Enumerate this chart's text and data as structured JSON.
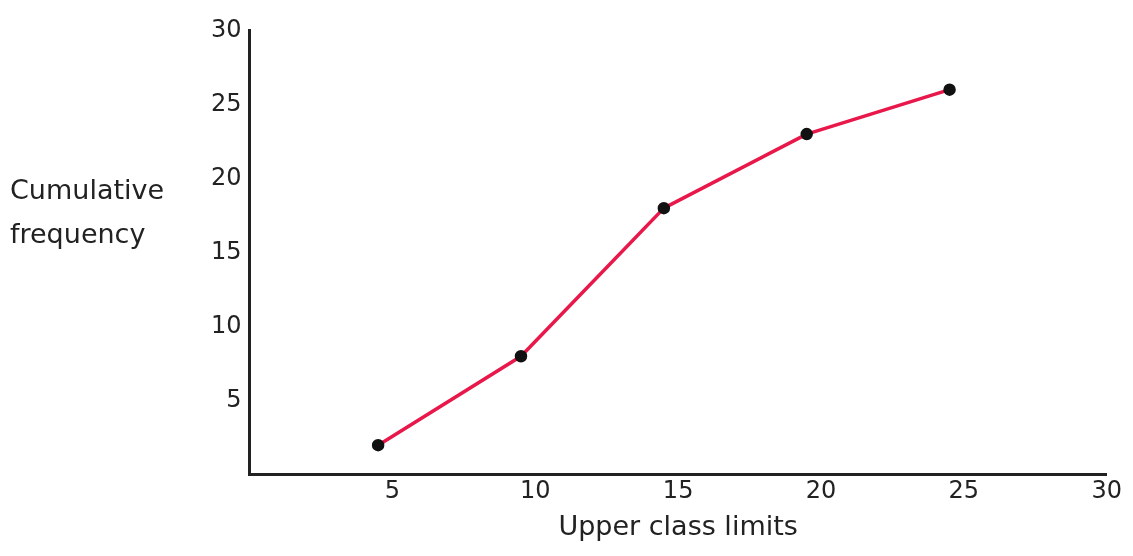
{
  "chart_data": {
    "type": "line",
    "xlabel": "Upper class limits",
    "ylabel": "Cumulative frequency",
    "x": [
      4.5,
      9.5,
      14.5,
      19.5,
      24.5
    ],
    "series": [
      {
        "color": "#e8184a",
        "values": [
          2,
          8,
          18,
          23,
          26
        ]
      }
    ],
    "xlim": [
      0,
      30
    ],
    "ylim": [
      0,
      30
    ],
    "xticks": [
      5,
      10,
      15,
      20,
      25,
      30
    ],
    "yticks": [
      5,
      10,
      15,
      20,
      25,
      30
    ],
    "grid": false,
    "legend": false,
    "marker": "circle",
    "line_style": "solid"
  }
}
